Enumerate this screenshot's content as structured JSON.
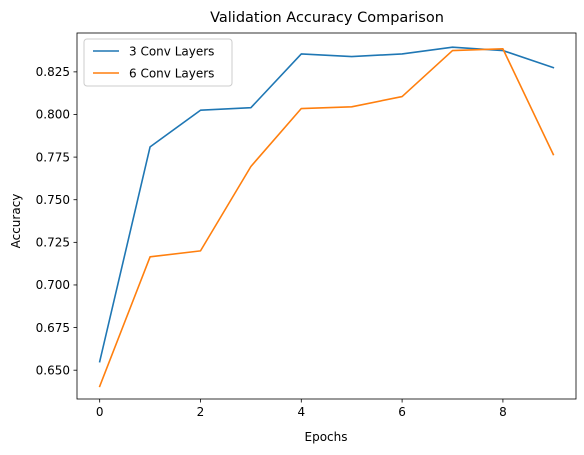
{
  "chart_data": {
    "type": "line",
    "title": "Validation Accuracy Comparison",
    "xlabel": "Epochs",
    "ylabel": "Accuracy",
    "x": [
      0,
      1,
      2,
      3,
      4,
      5,
      6,
      7,
      8,
      9
    ],
    "xlim": [
      -0.45,
      9.45
    ],
    "ylim": [
      0.6331,
      0.8478
    ],
    "xticks": [
      0,
      2,
      4,
      6,
      8
    ],
    "xtick_labels": [
      "0",
      "2",
      "4",
      "6",
      "8"
    ],
    "yticks": [
      0.65,
      0.675,
      0.7,
      0.725,
      0.75,
      0.775,
      0.8,
      0.825
    ],
    "ytick_labels": [
      "0.650",
      "0.675",
      "0.700",
      "0.725",
      "0.750",
      "0.775",
      "0.800",
      "0.825"
    ],
    "grid": false,
    "legend_position": "top-left",
    "series": [
      {
        "name": "3 Conv Layers",
        "color": "#1f77b4",
        "values": [
          0.655,
          0.781,
          0.8025,
          0.804,
          0.8355,
          0.834,
          0.8355,
          0.8395,
          0.8375,
          0.8275
        ]
      },
      {
        "name": "6 Conv Layers",
        "color": "#ff7f0e",
        "values": [
          0.6405,
          0.7165,
          0.72,
          0.7695,
          0.8035,
          0.8045,
          0.8105,
          0.8375,
          0.8385,
          0.7765
        ]
      }
    ]
  }
}
